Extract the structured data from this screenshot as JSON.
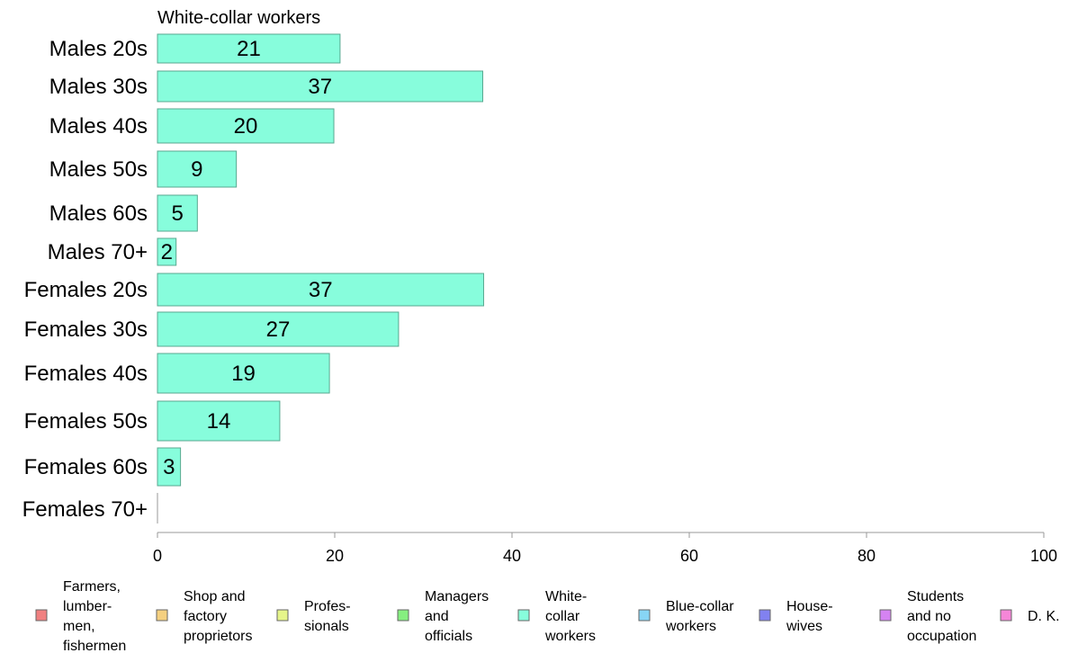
{
  "chart_data": {
    "type": "bar",
    "orientation": "horizontal",
    "title": "White-collar workers",
    "categories": [
      "Males 20s",
      "Males 30s",
      "Males 40s",
      "Males 50s",
      "Males 60s",
      "Males 70+",
      "Females 20s",
      "Females 30s",
      "Females 40s",
      "Females 50s",
      "Females 60s",
      "Females 70+"
    ],
    "values": [
      20.6,
      36.7,
      19.9,
      8.9,
      4.5,
      2.1,
      36.8,
      27.2,
      19.4,
      13.8,
      2.6,
      0
    ],
    "value_labels": [
      "21",
      "37",
      "20",
      "9",
      "5",
      "2",
      "37",
      "27",
      "19",
      "14",
      "3",
      ""
    ],
    "xlim": [
      0,
      100
    ],
    "xticks": [
      "0",
      "20",
      "40",
      "60",
      "80",
      "100"
    ],
    "bar_color": "#87fddc",
    "bar_stroke": "#5aa890",
    "legend": {
      "position": "bottom",
      "items": [
        {
          "lines": [
            "Farmers,",
            "lumber-",
            "men,",
            "fishermen"
          ],
          "color": "#f08080"
        },
        {
          "lines": [
            "Shop and",
            "factory",
            "proprietors"
          ],
          "color": "#f5d080"
        },
        {
          "lines": [
            "Profes-",
            "sionals"
          ],
          "color": "#e6f58a"
        },
        {
          "lines": [
            "Managers",
            "and",
            "officials"
          ],
          "color": "#86ef80"
        },
        {
          "lines": [
            "White-",
            "collar",
            "workers"
          ],
          "color": "#87fddc"
        },
        {
          "lines": [
            "Blue-collar",
            "workers"
          ],
          "color": "#87d5f5"
        },
        {
          "lines": [
            "House-",
            "wives"
          ],
          "color": "#8181f0"
        },
        {
          "lines": [
            "Students",
            "and no",
            "occupation"
          ],
          "color": "#d583f2"
        },
        {
          "lines": [
            "D. K."
          ],
          "color": "#f586d8"
        }
      ]
    }
  }
}
